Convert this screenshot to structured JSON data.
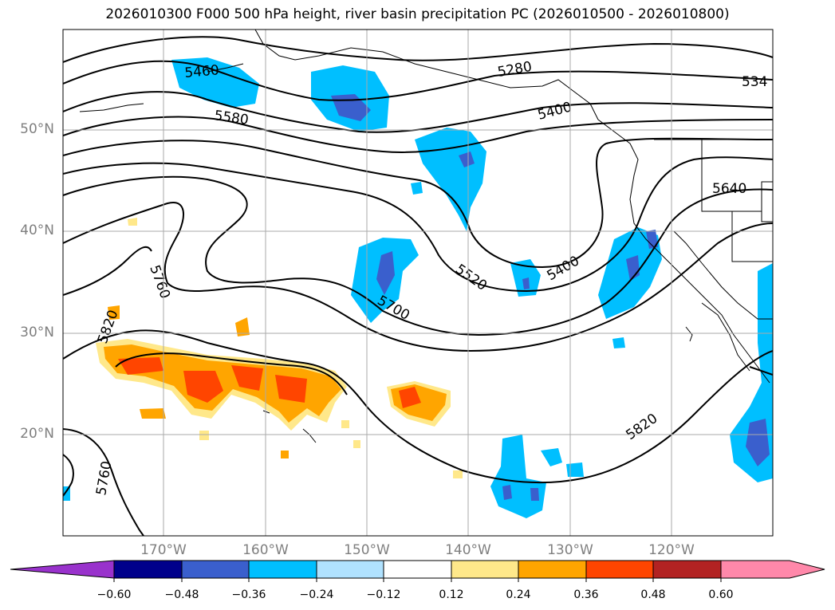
{
  "title": "2026010300 F000 500 hPa height, river basin precipitation PC (2026010500 - 2026010800)",
  "lat_labels": [
    "50°N",
    "40°N",
    "30°N",
    "20°N"
  ],
  "lon_labels": [
    "170°W",
    "160°W",
    "150°W",
    "140°W",
    "130°W",
    "120°W"
  ],
  "contour_labels": [
    "5460",
    "5580",
    "5280",
    "5400",
    "534",
    "5640",
    "5520",
    "5400",
    "5700",
    "5760",
    "5820",
    "5820",
    "5760"
  ],
  "colorbar": {
    "labels": [
      "−0.60",
      "−0.48",
      "−0.36",
      "−0.24",
      "−0.12",
      "0.12",
      "0.24",
      "0.36",
      "0.48",
      "0.60"
    ],
    "colors": [
      "#9932cc",
      "#00008b",
      "#3a5fcd",
      "#00bfff",
      "#b0e2ff",
      "#ffffff",
      "#ffe88a",
      "#ffa500",
      "#ff4500",
      "#b22222",
      "#ff88aa",
      "#ff88aa"
    ]
  },
  "colors": {
    "negative_strong": "#3a5fcd",
    "negative": "#00bfff",
    "negative_weak": "#b0e2ff",
    "positive_weak": "#ffe88a",
    "positive": "#ffa500",
    "positive_strong": "#ff4500"
  }
}
